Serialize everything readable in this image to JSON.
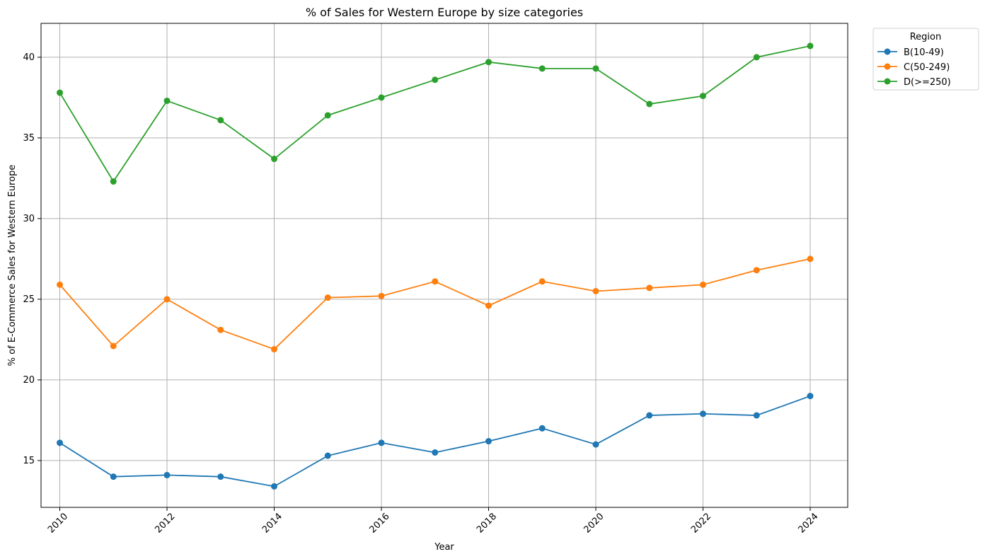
{
  "chart_data": {
    "type": "line",
    "title": "% of Sales for Western Europe by size categories",
    "xlabel": "Year",
    "ylabel": "% of E-Commerce Sales for Western Europe",
    "x": [
      2010,
      2011,
      2012,
      2013,
      2014,
      2015,
      2016,
      2017,
      2018,
      2019,
      2020,
      2021,
      2022,
      2023,
      2024
    ],
    "xlim": [
      2009.65,
      2024.7
    ],
    "ylim": [
      12.1,
      42.1
    ],
    "xticks": [
      2010,
      2012,
      2014,
      2016,
      2018,
      2020,
      2022,
      2024
    ],
    "yticks": [
      15,
      20,
      25,
      30,
      35,
      40
    ],
    "grid": true,
    "legend": {
      "title": "Region",
      "placement": "outside-top-right"
    },
    "series": [
      {
        "name": "B(10-49)",
        "color": "#1f77b4",
        "values": [
          16.1,
          14.0,
          14.1,
          14.0,
          13.4,
          15.3,
          16.1,
          15.5,
          16.2,
          17.0,
          16.0,
          17.8,
          17.9,
          17.8,
          19.0
        ]
      },
      {
        "name": "C(50-249)",
        "color": "#ff7f0e",
        "values": [
          25.9,
          22.1,
          25.0,
          23.1,
          21.9,
          25.1,
          25.2,
          26.1,
          24.6,
          26.1,
          25.5,
          25.7,
          25.9,
          26.8,
          27.5
        ]
      },
      {
        "name": "D(>=250)",
        "color": "#2ca02c",
        "values": [
          37.8,
          32.3,
          37.3,
          36.1,
          33.7,
          36.4,
          37.5,
          38.6,
          39.7,
          39.3,
          39.3,
          37.1,
          37.6,
          40.0,
          40.7
        ]
      }
    ]
  }
}
